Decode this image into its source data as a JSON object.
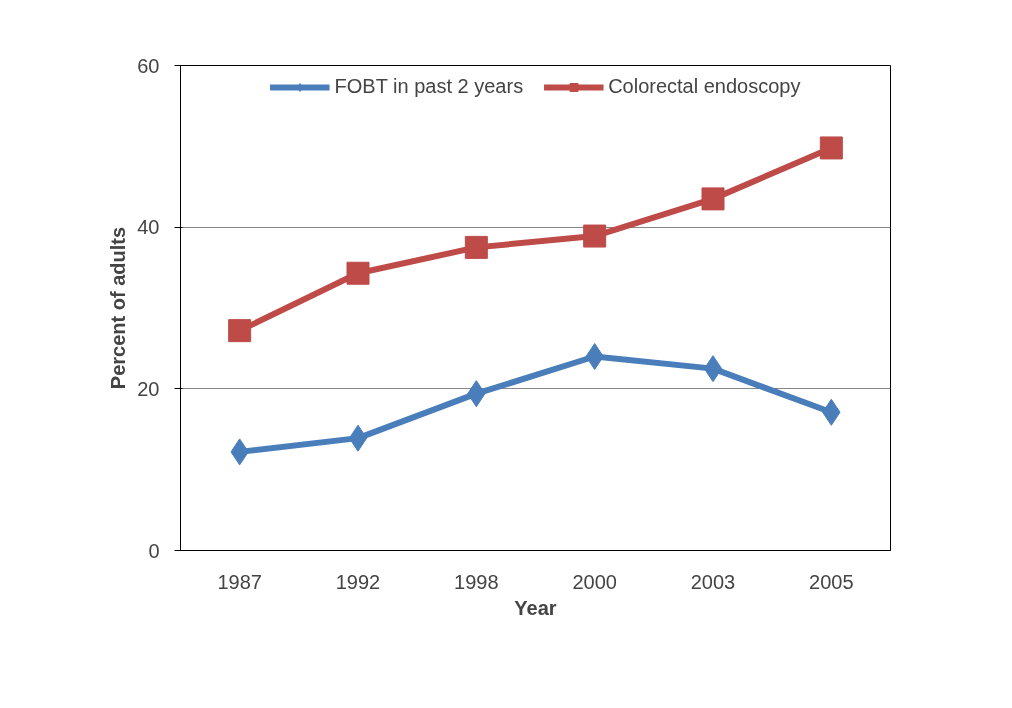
{
  "chart_data": {
    "type": "line",
    "xlabel": "Year",
    "ylabel": "Percent of adults",
    "categories": [
      "1987",
      "1992",
      "1998",
      "2000",
      "2003",
      "2005"
    ],
    "series": [
      {
        "name": "FOBT in past 2 years",
        "color": "#4a7ebb",
        "marker": "diamond",
        "values": [
          12.2,
          13.9,
          19.4,
          24.0,
          22.5,
          17.1
        ]
      },
      {
        "name": "Colorectal endoscopy",
        "color": "#be4b48",
        "marker": "square",
        "values": [
          27.2,
          34.3,
          37.5,
          38.9,
          43.5,
          49.8
        ]
      }
    ],
    "ylim": [
      0,
      60
    ],
    "yticks": [
      0,
      20,
      40,
      60
    ],
    "grid": "y",
    "legend": "top",
    "line_style": "solid"
  }
}
